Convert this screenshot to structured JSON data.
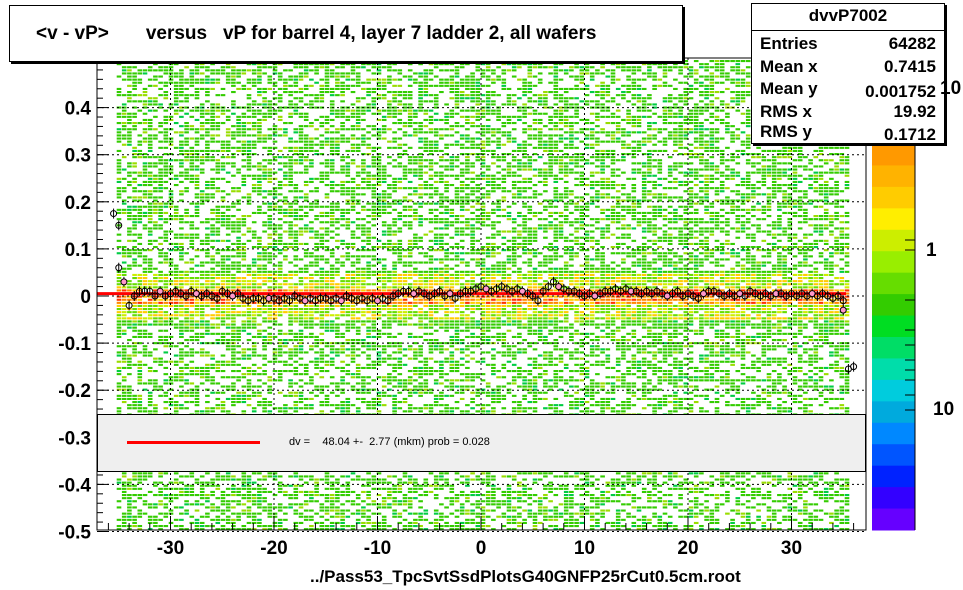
{
  "title": "<v - vP>       versus   vP for barrel 4, layer 7 ladder 2, all wafers",
  "stats": {
    "name": "dvvP7002",
    "rows": [
      {
        "key": "Entries",
        "value": "64282"
      },
      {
        "key": "Mean x",
        "value": "0.7415"
      },
      {
        "key": "Mean y",
        "value": "0.001752"
      },
      {
        "key": "RMS x",
        "value": "19.92"
      },
      {
        "key": "RMS y",
        "value": "0.1712"
      }
    ]
  },
  "fit_label": "dv =    48.04 +-  2.77 (mkm) prob = 0.028",
  "footer": "../Pass53_TpcSvtSsdPlotsG40GNFP25rCut0.5cm.root",
  "colorbar_labels": [
    "10",
    "1",
    "10"
  ],
  "colors": {
    "fit_line": "#ff0000",
    "scatter_main": "#33cc00",
    "scatter_core": "#ff8800",
    "fit_box_bg": "#efefef"
  },
  "chart_data": {
    "type": "heatmap",
    "title": "<v - vP>       versus   vP for barrel 4, layer 7 ladder 2, all wafers",
    "xlim": [
      -37,
      37
    ],
    "ylim": [
      -0.5,
      0.5
    ],
    "xticks": [
      -30,
      -20,
      -10,
      0,
      10,
      20,
      30
    ],
    "yticks": [
      -0.5,
      -0.4,
      -0.3,
      -0.2,
      -0.1,
      0,
      0.1,
      0.2,
      0.3,
      0.4
    ],
    "ytick_labels": [
      "-0.5",
      "-0.4",
      "-0.3",
      "-0.2",
      "-0.1",
      "0",
      "0.1",
      "0.2",
      "0.3",
      "0.4"
    ],
    "xtick_labels": [
      "-30",
      "-20",
      "-10",
      "0",
      "10",
      "20",
      "30"
    ],
    "grid": true,
    "fit_value_y": 0.005,
    "profile_points": [
      {
        "x": -35.5,
        "y": 0.175
      },
      {
        "x": -35.0,
        "y": 0.15
      },
      {
        "x": -35.0,
        "y": 0.06
      },
      {
        "x": -34.5,
        "y": 0.03
      },
      {
        "x": -34.0,
        "y": -0.02
      },
      {
        "x": -33.5,
        "y": 0.0
      },
      {
        "x": -33.0,
        "y": 0.01
      },
      {
        "x": -32.5,
        "y": 0.01
      },
      {
        "x": -32.0,
        "y": 0.01
      },
      {
        "x": -31.5,
        "y": 0.0
      },
      {
        "x": -31.0,
        "y": 0.01
      },
      {
        "x": -30.5,
        "y": 0.0
      },
      {
        "x": -30.0,
        "y": 0.005
      },
      {
        "x": -29.5,
        "y": 0.01
      },
      {
        "x": -29.0,
        "y": 0.005
      },
      {
        "x": -28.5,
        "y": 0.0
      },
      {
        "x": -28.0,
        "y": 0.01
      },
      {
        "x": -27.5,
        "y": 0.005
      },
      {
        "x": -27.0,
        "y": 0.0
      },
      {
        "x": -26.5,
        "y": 0.005
      },
      {
        "x": -26.0,
        "y": 0.0
      },
      {
        "x": -25.5,
        "y": -0.005
      },
      {
        "x": -25.0,
        "y": 0.01
      },
      {
        "x": -24.5,
        "y": 0.005
      },
      {
        "x": -24.0,
        "y": 0.0
      },
      {
        "x": -23.5,
        "y": 0.005
      },
      {
        "x": -23.0,
        "y": -0.005
      },
      {
        "x": -22.5,
        "y": -0.01
      },
      {
        "x": -22.0,
        "y": -0.005
      },
      {
        "x": -21.5,
        "y": -0.005
      },
      {
        "x": -21.0,
        "y": -0.01
      },
      {
        "x": -20.5,
        "y": -0.005
      },
      {
        "x": -20.0,
        "y": -0.005
      },
      {
        "x": -19.5,
        "y": -0.01
      },
      {
        "x": -19.0,
        "y": -0.005
      },
      {
        "x": -18.5,
        "y": -0.01
      },
      {
        "x": -18.0,
        "y": 0.0
      },
      {
        "x": -17.5,
        "y": -0.005
      },
      {
        "x": -17.0,
        "y": -0.01
      },
      {
        "x": -16.5,
        "y": -0.005
      },
      {
        "x": -16.0,
        "y": -0.01
      },
      {
        "x": -15.5,
        "y": -0.005
      },
      {
        "x": -15.0,
        "y": -0.005
      },
      {
        "x": -14.5,
        "y": -0.01
      },
      {
        "x": -14.0,
        "y": -0.005
      },
      {
        "x": -13.5,
        "y": -0.01
      },
      {
        "x": -13.0,
        "y": 0.0
      },
      {
        "x": -12.5,
        "y": -0.005
      },
      {
        "x": -12.0,
        "y": -0.01
      },
      {
        "x": -11.5,
        "y": -0.005
      },
      {
        "x": -11.0,
        "y": -0.01
      },
      {
        "x": -10.5,
        "y": -0.005
      },
      {
        "x": -10.0,
        "y": -0.01
      },
      {
        "x": -9.5,
        "y": -0.005
      },
      {
        "x": -9.0,
        "y": -0.01
      },
      {
        "x": -8.5,
        "y": 0.0
      },
      {
        "x": -8.0,
        "y": 0.005
      },
      {
        "x": -7.5,
        "y": 0.01
      },
      {
        "x": -7.0,
        "y": 0.01
      },
      {
        "x": -6.5,
        "y": 0.005
      },
      {
        "x": -6.0,
        "y": 0.01
      },
      {
        "x": -5.5,
        "y": 0.005
      },
      {
        "x": -5.0,
        "y": 0.0
      },
      {
        "x": -4.5,
        "y": 0.005
      },
      {
        "x": -4.0,
        "y": 0.01
      },
      {
        "x": -3.5,
        "y": 0.0
      },
      {
        "x": -3.0,
        "y": 0.005
      },
      {
        "x": -2.5,
        "y": -0.005
      },
      {
        "x": -2.0,
        "y": 0.005
      },
      {
        "x": -1.5,
        "y": 0.01
      },
      {
        "x": -1.0,
        "y": 0.01
      },
      {
        "x": -0.5,
        "y": 0.015
      },
      {
        "x": 0.0,
        "y": 0.02
      },
      {
        "x": 0.5,
        "y": 0.015
      },
      {
        "x": 1.0,
        "y": 0.01
      },
      {
        "x": 1.5,
        "y": 0.015
      },
      {
        "x": 2.0,
        "y": 0.02
      },
      {
        "x": 2.5,
        "y": 0.015
      },
      {
        "x": 3.0,
        "y": 0.01
      },
      {
        "x": 3.5,
        "y": 0.015
      },
      {
        "x": 4.0,
        "y": 0.01
      },
      {
        "x": 4.5,
        "y": 0.005
      },
      {
        "x": 5.0,
        "y": 0.0
      },
      {
        "x": 5.5,
        "y": -0.01
      },
      {
        "x": 6.0,
        "y": 0.01
      },
      {
        "x": 6.5,
        "y": 0.02
      },
      {
        "x": 7.0,
        "y": 0.03
      },
      {
        "x": 7.5,
        "y": 0.02
      },
      {
        "x": 8.0,
        "y": 0.015
      },
      {
        "x": 8.5,
        "y": 0.01
      },
      {
        "x": 9.0,
        "y": 0.01
      },
      {
        "x": 9.5,
        "y": 0.005
      },
      {
        "x": 10.0,
        "y": 0.0
      },
      {
        "x": 10.5,
        "y": 0.005
      },
      {
        "x": 11.0,
        "y": 0.0
      },
      {
        "x": 11.5,
        "y": 0.005
      },
      {
        "x": 12.0,
        "y": 0.01
      },
      {
        "x": 12.5,
        "y": 0.01
      },
      {
        "x": 13.0,
        "y": 0.015
      },
      {
        "x": 13.5,
        "y": 0.01
      },
      {
        "x": 14.0,
        "y": 0.015
      },
      {
        "x": 14.5,
        "y": 0.01
      },
      {
        "x": 15.0,
        "y": 0.01
      },
      {
        "x": 15.5,
        "y": 0.005
      },
      {
        "x": 16.0,
        "y": 0.01
      },
      {
        "x": 16.5,
        "y": 0.005
      },
      {
        "x": 17.0,
        "y": 0.01
      },
      {
        "x": 17.5,
        "y": 0.005
      },
      {
        "x": 18.0,
        "y": 0.0
      },
      {
        "x": 18.5,
        "y": 0.005
      },
      {
        "x": 19.0,
        "y": 0.01
      },
      {
        "x": 19.5,
        "y": 0.0
      },
      {
        "x": 20.0,
        "y": 0.005
      },
      {
        "x": 20.5,
        "y": 0.0
      },
      {
        "x": 21.0,
        "y": -0.005
      },
      {
        "x": 21.5,
        "y": 0.005
      },
      {
        "x": 22.0,
        "y": 0.01
      },
      {
        "x": 22.5,
        "y": 0.01
      },
      {
        "x": 23.0,
        "y": 0.005
      },
      {
        "x": 23.5,
        "y": 0.0
      },
      {
        "x": 24.0,
        "y": 0.005
      },
      {
        "x": 24.5,
        "y": 0.0
      },
      {
        "x": 25.0,
        "y": 0.005
      },
      {
        "x": 25.5,
        "y": 0.0
      },
      {
        "x": 26.0,
        "y": 0.01
      },
      {
        "x": 26.5,
        "y": 0.005
      },
      {
        "x": 27.0,
        "y": 0.0
      },
      {
        "x": 27.5,
        "y": 0.005
      },
      {
        "x": 28.0,
        "y": 0.0
      },
      {
        "x": 28.5,
        "y": 0.005
      },
      {
        "x": 29.0,
        "y": 0.005
      },
      {
        "x": 29.5,
        "y": 0.0
      },
      {
        "x": 30.0,
        "y": 0.005
      },
      {
        "x": 30.5,
        "y": 0.0
      },
      {
        "x": 31.0,
        "y": 0.005
      },
      {
        "x": 31.5,
        "y": 0.0
      },
      {
        "x": 32.0,
        "y": 0.005
      },
      {
        "x": 32.5,
        "y": 0.0
      },
      {
        "x": 33.0,
        "y": 0.005
      },
      {
        "x": 33.5,
        "y": 0.0
      },
      {
        "x": 34.0,
        "y": -0.005
      },
      {
        "x": 34.5,
        "y": 0.0
      },
      {
        "x": 35.0,
        "y": -0.01
      },
      {
        "x": 35.0,
        "y": -0.03
      },
      {
        "x": 35.5,
        "y": -0.155
      },
      {
        "x": 36.0,
        "y": -0.15
      }
    ]
  }
}
